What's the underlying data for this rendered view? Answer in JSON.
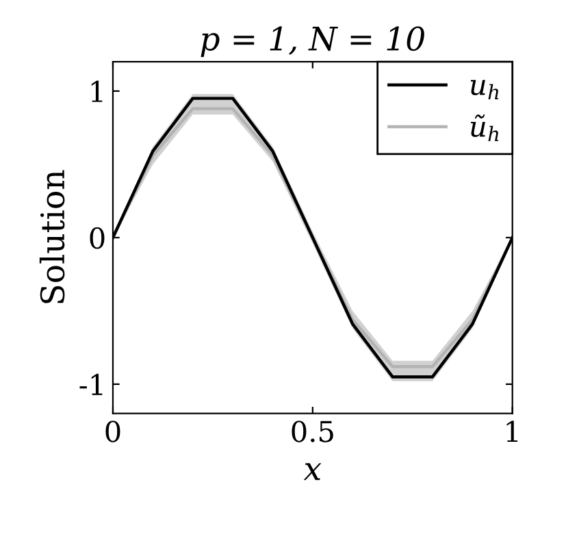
{
  "chart_data": {
    "type": "line",
    "title": "p = 1, N = 10",
    "xlabel": "x",
    "ylabel": "Solution",
    "x": [
      0,
      0.1,
      0.2,
      0.3,
      0.4,
      0.5,
      0.6,
      0.7,
      0.8,
      0.9,
      1
    ],
    "series": [
      {
        "name": "u$_{h}$",
        "color": "#000000",
        "values": [
          0,
          0.59,
          0.95,
          0.95,
          0.59,
          0,
          -0.59,
          -0.95,
          -0.95,
          -0.59,
          0
        ]
      },
      {
        "name": "ũ$_{h}$",
        "color": "#b3b3b3",
        "values": [
          0,
          0.56,
          0.88,
          0.88,
          0.56,
          0,
          -0.56,
          -0.88,
          -0.88,
          -0.56,
          0
        ],
        "lower": [
          0,
          0.5,
          0.84,
          0.84,
          0.52,
          -0.04,
          -0.62,
          -0.98,
          -0.98,
          -0.62,
          0
        ],
        "upper": [
          0,
          0.62,
          0.98,
          0.98,
          0.62,
          0.04,
          -0.5,
          -0.84,
          -0.84,
          -0.5,
          0
        ]
      }
    ],
    "xlim": [
      0,
      1
    ],
    "ylim": [
      -1.2,
      1.2
    ],
    "xticks": [
      0,
      0.5,
      1
    ],
    "yticks": [
      -1,
      0,
      1
    ],
    "grid": false,
    "legend": "top right",
    "line_style": "solid",
    "marker": "none"
  }
}
